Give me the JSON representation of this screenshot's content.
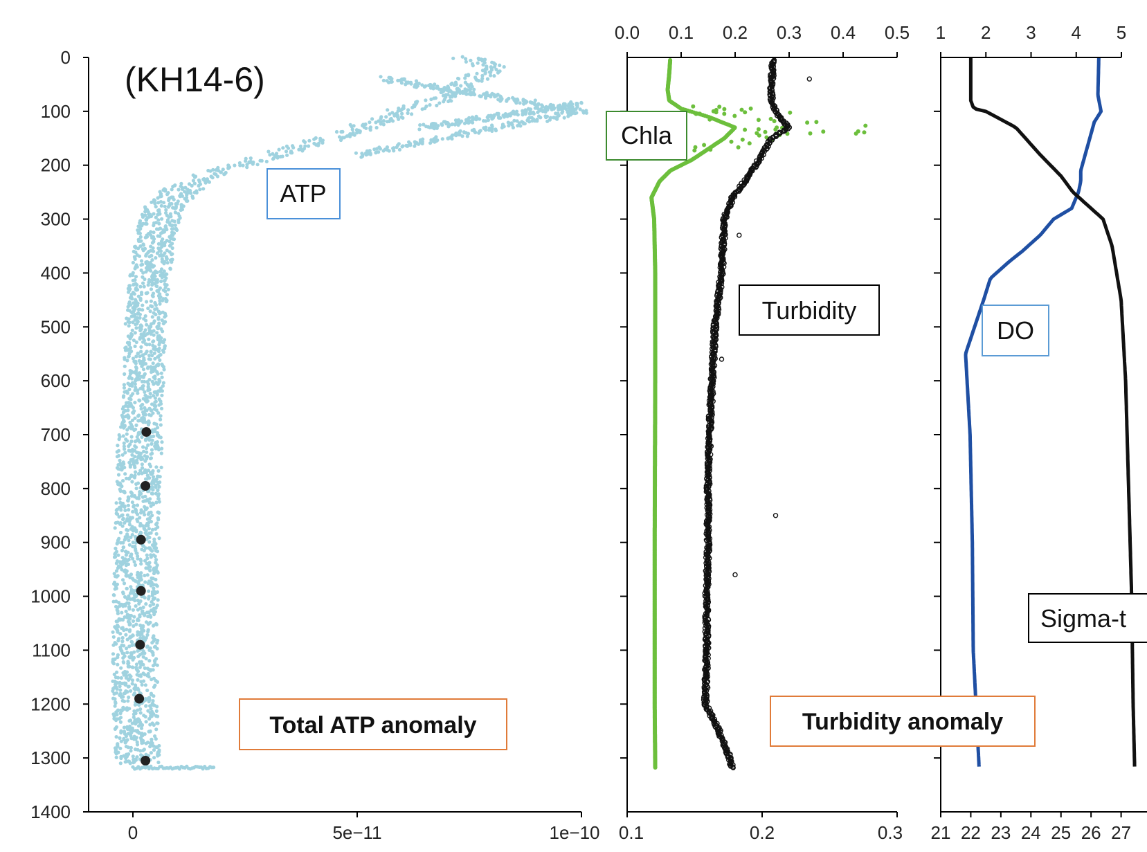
{
  "chart_data": [
    {
      "type": "scatter",
      "annotation": "(KH14-6)",
      "depth_axis": {
        "range": [
          0,
          1400
        ],
        "ticks": [
          0,
          100,
          200,
          300,
          400,
          500,
          600,
          700,
          800,
          900,
          1000,
          1100,
          1200,
          1300,
          1400
        ],
        "inverted": true
      },
      "x_axis": {
        "range": [
          0,
          1e-10
        ],
        "ticks": [
          "0",
          "5e−11",
          "1e−10"
        ],
        "tick_values": [
          0,
          5e-11,
          1e-10
        ]
      },
      "series": [
        {
          "name": "ATP",
          "color": "#9fd2df",
          "profile": [
            [
              0,
              7.5e-11
            ],
            [
              20,
              8e-11
            ],
            [
              40,
              7.6e-11
            ],
            [
              60,
              7.2e-11
            ],
            [
              80,
              6.8e-11
            ],
            [
              100,
              6e-11
            ],
            [
              120,
              5.4e-11
            ],
            [
              140,
              4.8e-11
            ],
            [
              160,
              4e-11
            ],
            [
              180,
              3.2e-11
            ],
            [
              200,
              2.4e-11
            ],
            [
              220,
              1.6e-11
            ],
            [
              250,
              1e-11
            ],
            [
              280,
              7e-12
            ],
            [
              320,
              5.5e-12
            ],
            [
              370,
              4.5e-12
            ],
            [
              420,
              3.5e-12
            ],
            [
              500,
              2.8e-12
            ],
            [
              600,
              2.5e-12
            ],
            [
              700,
              1.6e-12
            ],
            [
              800,
              1.2e-12
            ],
            [
              900,
              9e-13
            ],
            [
              1000,
              6e-13
            ],
            [
              1100,
              5e-13
            ],
            [
              1200,
              5e-13
            ],
            [
              1300,
              1e-12
            ]
          ],
          "branches": [
            {
              "depth": [
                40,
                100
              ],
              "x": [
                5.6e-11,
                1e-10
              ]
            },
            {
              "depth": [
                130,
                85
              ],
              "x": [
                6.5e-11,
                1e-10
              ]
            },
            {
              "depth": [
                180,
                100
              ],
              "x": [
                5e-11,
                1e-10
              ]
            }
          ],
          "tail": {
            "depth": 1318,
            "x": [
              0,
              1.8e-11
            ]
          }
        },
        {
          "name": "Total ATP anomaly",
          "color": "#222222",
          "points": [
            {
              "depth": 695,
              "x": 3e-12
            },
            {
              "depth": 795,
              "x": 2.8e-12
            },
            {
              "depth": 895,
              "x": 1.8e-12
            },
            {
              "depth": 990,
              "x": 1.8e-12
            },
            {
              "depth": 1090,
              "x": 1.6e-12
            },
            {
              "depth": 1190,
              "x": 1.4e-12
            },
            {
              "depth": 1305,
              "x": 2.8e-12
            }
          ]
        }
      ]
    },
    {
      "type": "line",
      "depth_axis": {
        "range": [
          0,
          1400
        ],
        "inverted": true
      },
      "top_axis": {
        "range": [
          0.0,
          0.5
        ],
        "ticks": [
          "0.0",
          "0.1",
          "0.2",
          "0.3",
          "0.4",
          "0.5"
        ],
        "tick_values": [
          0.0,
          0.1,
          0.2,
          0.3,
          0.4,
          0.5
        ]
      },
      "bottom_axis": {
        "range": [
          0.1,
          0.3
        ],
        "ticks": [
          "0.1",
          "0.2",
          "0.3"
        ],
        "tick_values": [
          0.1,
          0.2,
          0.3
        ]
      },
      "series": [
        {
          "name": "Chla",
          "axis": "top",
          "color": "#6cbf3c",
          "profile": [
            [
              0,
              0.08
            ],
            [
              30,
              0.078
            ],
            [
              60,
              0.075
            ],
            [
              80,
              0.078
            ],
            [
              95,
              0.1
            ],
            [
              110,
              0.15
            ],
            [
              130,
              0.2
            ],
            [
              150,
              0.18
            ],
            [
              170,
              0.15
            ],
            [
              190,
              0.12
            ],
            [
              210,
              0.08
            ],
            [
              230,
              0.06
            ],
            [
              260,
              0.045
            ],
            [
              300,
              0.05
            ],
            [
              400,
              0.052
            ],
            [
              600,
              0.052
            ],
            [
              900,
              0.051
            ],
            [
              1200,
              0.051
            ],
            [
              1318,
              0.052
            ]
          ],
          "spike_points": [
            {
              "depth": 100,
              "value": 0.2
            },
            {
              "depth": 105,
              "value": 0.26
            },
            {
              "depth": 110,
              "value": 0.31
            },
            {
              "depth": 128,
              "value": 0.42
            },
            {
              "depth": 133,
              "value": 0.46
            },
            {
              "depth": 140,
              "value": 0.35
            },
            {
              "depth": 150,
              "value": 0.28
            },
            {
              "depth": 165,
              "value": 0.22
            }
          ]
        },
        {
          "name": "Turbidity",
          "axis": "bottom",
          "color": "#111111",
          "profile": [
            [
              5,
              0.208
            ],
            [
              50,
              0.207
            ],
            [
              80,
              0.207
            ],
            [
              110,
              0.212
            ],
            [
              130,
              0.22
            ],
            [
              150,
              0.207
            ],
            [
              180,
              0.2
            ],
            [
              220,
              0.19
            ],
            [
              260,
              0.178
            ],
            [
              300,
              0.172
            ],
            [
              400,
              0.17
            ],
            [
              500,
              0.165
            ],
            [
              600,
              0.163
            ],
            [
              700,
              0.161
            ],
            [
              800,
              0.16
            ],
            [
              900,
              0.16
            ],
            [
              1000,
              0.159
            ],
            [
              1100,
              0.159
            ],
            [
              1200,
              0.158
            ],
            [
              1250,
              0.168
            ],
            [
              1300,
              0.176
            ],
            [
              1318,
              0.178
            ]
          ]
        }
      ]
    },
    {
      "type": "line",
      "depth_axis": {
        "range": [
          0,
          1400
        ],
        "inverted": true
      },
      "top_axis": {
        "range": [
          1,
          5
        ],
        "ticks": [
          "1",
          "2",
          "3",
          "4",
          "5"
        ],
        "tick_values": [
          1,
          2,
          3,
          4,
          5
        ]
      },
      "bottom_axis": {
        "range": [
          21,
          27.7
        ],
        "ticks": [
          "21",
          "22",
          "23",
          "24",
          "25",
          "26",
          "27"
        ],
        "tick_values": [
          21,
          22,
          23,
          24,
          25,
          26,
          27
        ]
      },
      "series": [
        {
          "name": "DO",
          "axis": "top",
          "color": "#1f4fa3",
          "profile": [
            [
              0,
              4.5
            ],
            [
              70,
              4.48
            ],
            [
              100,
              4.55
            ],
            [
              120,
              4.4
            ],
            [
              150,
              4.3
            ],
            [
              180,
              4.2
            ],
            [
              210,
              4.1
            ],
            [
              230,
              4.1
            ],
            [
              250,
              4.05
            ],
            [
              280,
              3.9
            ],
            [
              300,
              3.5
            ],
            [
              330,
              3.2
            ],
            [
              360,
              2.8
            ],
            [
              380,
              2.5
            ],
            [
              410,
              2.1
            ],
            [
              450,
              1.95
            ],
            [
              550,
              1.55
            ],
            [
              700,
              1.65
            ],
            [
              900,
              1.7
            ],
            [
              1100,
              1.72
            ],
            [
              1200,
              1.78
            ],
            [
              1318,
              1.85
            ]
          ]
        },
        {
          "name": "Sigma-t",
          "axis": "bottom",
          "color": "#111111",
          "profile": [
            [
              0,
              22.0
            ],
            [
              80,
              22.0
            ],
            [
              95,
              22.1
            ],
            [
              100,
              22.5
            ],
            [
              130,
              23.5
            ],
            [
              180,
              24.3
            ],
            [
              220,
              25.0
            ],
            [
              250,
              25.4
            ],
            [
              300,
              26.4
            ],
            [
              350,
              26.7
            ],
            [
              450,
              27.0
            ],
            [
              600,
              27.15
            ],
            [
              800,
              27.25
            ],
            [
              1000,
              27.35
            ],
            [
              1200,
              27.4
            ],
            [
              1318,
              27.45
            ]
          ]
        }
      ]
    }
  ],
  "labels": {
    "atp": "ATP",
    "total_atp_anomaly": "Total ATP anomaly",
    "chla": "Chla",
    "turbidity": "Turbidity",
    "turbidity_anomaly": "Turbidity anomaly",
    "do": "DO",
    "sigma_t": "Sigma-t",
    "title": "(KH14-6)"
  },
  "colors": {
    "atp_points": "#9fd2df",
    "anomaly_points": "#222222",
    "chla": "#6cbf3c",
    "turbidity": "#111111",
    "do": "#1f4fa3",
    "sigma_t": "#111111",
    "atp_box": "#4a90d9",
    "chla_box": "#3c8a2e",
    "black_box": "#000000",
    "anomaly_box": "#e07b39",
    "do_box": "#5b9bd5"
  }
}
